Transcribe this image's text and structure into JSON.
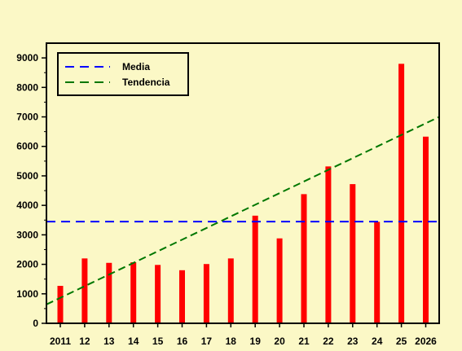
{
  "chart_data": {
    "type": "bar",
    "categories": [
      "2011",
      "12",
      "13",
      "14",
      "15",
      "16",
      "17",
      "18",
      "19",
      "20",
      "21",
      "22",
      "23",
      "24",
      "25",
      "2026"
    ],
    "values": [
      1270,
      2200,
      2050,
      2070,
      1980,
      1800,
      2010,
      2200,
      3650,
      2880,
      4380,
      5320,
      4720,
      3440,
      8800,
      6330
    ],
    "title": "",
    "xlabel": "",
    "ylabel": "",
    "ylim": [
      0,
      9500
    ],
    "yticks": [
      0,
      1000,
      2000,
      3000,
      4000,
      5000,
      6000,
      7000,
      8000,
      9000
    ],
    "bar_color": "#ff0000",
    "background_color": "#fbf8c6",
    "grid": false,
    "legend_position": "top-left",
    "lines": [
      {
        "name": "Media",
        "style": "dashed",
        "color": "#0000ff",
        "kind": "horizontal",
        "y": 3450
      },
      {
        "name": "Tendencia",
        "style": "dashed",
        "color": "#007700",
        "kind": "trend",
        "y_start": 640,
        "y_end": 7000
      }
    ]
  }
}
